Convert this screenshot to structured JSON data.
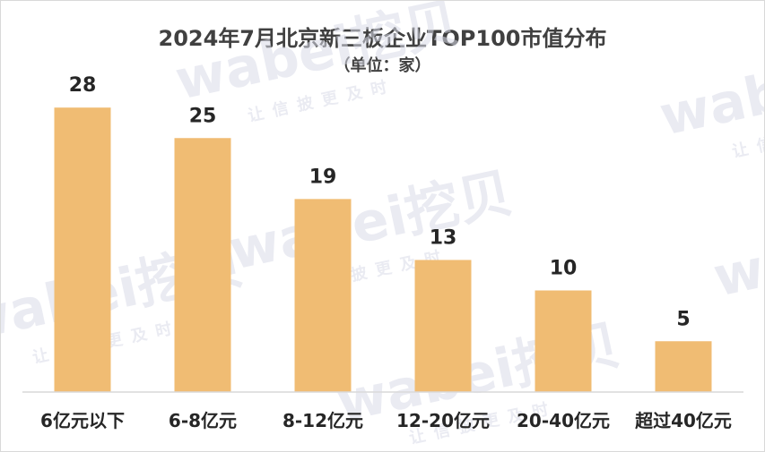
{
  "chart_data": {
    "type": "bar",
    "title": "2024年7月北京新三板企业TOP100市值分布",
    "subtitle": "（单位：家）",
    "categories": [
      "6亿元以下",
      "6-8亿元",
      "8-12亿元",
      "12-20亿元",
      "20-40亿元",
      "超过40亿元"
    ],
    "values": [
      28,
      25,
      19,
      13,
      10,
      5
    ],
    "ylim": [
      0,
      30
    ],
    "bar_color": "#F0BC73",
    "grid": false,
    "legend": "none"
  },
  "watermark": {
    "brand": "wabei挖贝",
    "slogan": "让信披更及时"
  }
}
